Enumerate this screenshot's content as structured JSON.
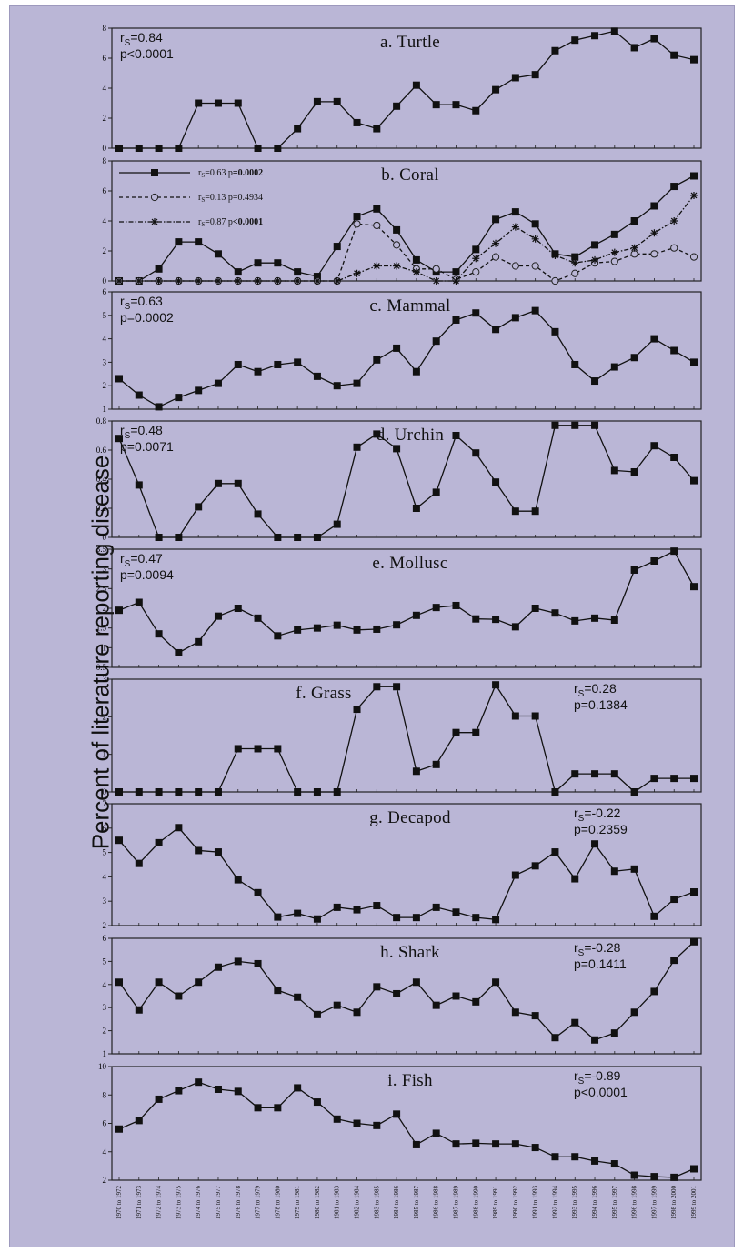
{
  "ylabel": "Percent of literature reporting disease",
  "x_categories": [
    "1970 to 1972",
    "1971 to 1973",
    "1972 to 1974",
    "1973 to 1975",
    "1974 to 1976",
    "1975 to 1977",
    "1976 to 1978",
    "1977 to 1979",
    "1978 to 1980",
    "1979 to 1981",
    "1980 to 1982",
    "1981 to 1983",
    "1982 to 1984",
    "1983 to 1985",
    "1984 to 1986",
    "1985 to 1987",
    "1986 to 1988",
    "1987 to 1989",
    "1988 to 1990",
    "1989 to 1991",
    "1990 to 1992",
    "1991 to 1993",
    "1992 to 1994",
    "1993 to 1995",
    "1994 to 1996",
    "1995 to 1997",
    "1996 to 1998",
    "1997 to 1999",
    "1998 to 2000",
    "1999 to 2001"
  ],
  "chart_data": [
    {
      "type": "line",
      "title": "a. Turtle",
      "stat": {
        "r": "0.84",
        "p": "p<0.0001"
      },
      "stat_position": "top-left",
      "ylim": [
        0,
        8
      ],
      "yticks": [
        0,
        2,
        4,
        6,
        8
      ],
      "series": [
        {
          "marker": "square",
          "line": "solid",
          "values": [
            0,
            0,
            0,
            0,
            3,
            3,
            3,
            0,
            0,
            1.3,
            3.1,
            3.1,
            1.7,
            1.3,
            2.8,
            4.2,
            2.9,
            2.9,
            2.5,
            3.9,
            4.7,
            4.9,
            6.5,
            7.2,
            7.5,
            7.8,
            6.7,
            7.3,
            6.2,
            5.9
          ]
        }
      ]
    },
    {
      "type": "line",
      "title": "b. Coral",
      "ylim": [
        0,
        8
      ],
      "yticks": [
        0,
        2,
        4,
        6,
        8
      ],
      "legend_position": "top-left",
      "series": [
        {
          "marker": "square",
          "line": "solid",
          "legend": {
            "r": "0.63",
            "p": "0.0002",
            "bold_p": true
          },
          "values": [
            0,
            0,
            0.8,
            2.6,
            2.6,
            1.8,
            0.6,
            1.2,
            1.2,
            0.6,
            0.3,
            2.3,
            4.3,
            4.8,
            3.4,
            1.4,
            0.6,
            0.6,
            2.1,
            4.1,
            4.6,
            3.8,
            1.8,
            1.6,
            2.4,
            3.1,
            4,
            5,
            6.3,
            7
          ]
        },
        {
          "marker": "circle",
          "line": "dashed",
          "legend": {
            "r": "0.13",
            "p": "0.4934",
            "bold_p": false
          },
          "values": [
            0,
            0,
            0,
            0,
            0,
            0,
            0,
            0,
            0,
            0,
            0,
            0,
            3.8,
            3.7,
            2.4,
            0.8,
            0.8,
            0.1,
            0.6,
            1.6,
            1,
            1,
            0,
            0.5,
            1.2,
            1.3,
            1.8,
            1.8,
            2.2,
            1.6
          ]
        },
        {
          "marker": "star",
          "line": "dashdot",
          "legend": {
            "r": "0.87",
            "p": "<0.0001",
            "bold_p": true
          },
          "values": [
            0,
            0,
            0,
            0,
            0,
            0,
            0,
            0,
            0,
            0,
            0,
            0,
            0.5,
            1,
            1,
            0.6,
            0,
            0,
            1.5,
            2.5,
            3.6,
            2.8,
            1.7,
            1.2,
            1.4,
            1.9,
            2.2,
            3.2,
            4,
            5.7
          ]
        }
      ]
    },
    {
      "type": "line",
      "title": "c. Mammal",
      "stat": {
        "r": "0.63",
        "p": "p=0.0002"
      },
      "stat_position": "top-left",
      "ylim": [
        1,
        6
      ],
      "yticks": [
        1,
        2,
        3,
        4,
        5,
        6
      ],
      "series": [
        {
          "marker": "square",
          "line": "solid",
          "values": [
            2.3,
            1.6,
            1.1,
            1.5,
            1.8,
            2.1,
            2.9,
            2.6,
            2.9,
            3,
            2.4,
            2,
            2.1,
            3.1,
            3.6,
            2.6,
            3.9,
            4.8,
            5.1,
            4.4,
            4.9,
            5.2,
            4.3,
            2.9,
            2.2,
            2.8,
            3.2,
            4,
            3.5,
            3
          ]
        }
      ]
    },
    {
      "type": "line",
      "title": "d. Urchin",
      "stat": {
        "r": "0.48",
        "p": "p=0.0071"
      },
      "stat_position": "top-left",
      "ylim": [
        0,
        0.8
      ],
      "yticks": [
        0,
        0.2,
        0.4,
        0.6,
        0.8
      ],
      "series": [
        {
          "marker": "square",
          "line": "solid",
          "values": [
            0.68,
            0.36,
            0,
            0,
            0.21,
            0.37,
            0.37,
            0.16,
            0,
            0,
            0,
            0.09,
            0.62,
            0.71,
            0.61,
            0.2,
            0.31,
            0.7,
            0.58,
            0.38,
            0.18,
            0.18,
            0.77,
            0.77,
            0.77,
            0.46,
            0.45,
            0.63,
            0.55,
            0.39
          ]
        }
      ]
    },
    {
      "type": "line",
      "title": "e. Mollusc",
      "stat": {
        "r": "0.47",
        "p": "p=0.0094"
      },
      "stat_position": "top-left",
      "ylim": [
        0.5,
        3.5
      ],
      "yticks": [
        0.5,
        1,
        1.5,
        2,
        2.5,
        3,
        3.5
      ],
      "series": [
        {
          "marker": "square",
          "line": "solid",
          "values": [
            1.95,
            2.15,
            1.35,
            0.87,
            1.15,
            1.8,
            2,
            1.75,
            1.3,
            1.45,
            1.5,
            1.57,
            1.45,
            1.47,
            1.58,
            1.82,
            2.02,
            2.07,
            1.73,
            1.72,
            1.53,
            2,
            1.88,
            1.68,
            1.75,
            1.7,
            2.97,
            3.2,
            3.45,
            2.55
          ]
        }
      ]
    },
    {
      "type": "line",
      "title": "f. Grass",
      "stat": {
        "r": "0.28",
        "p": "p=0.1384"
      },
      "stat_position": "top-right",
      "ylim": [
        0,
        3
      ],
      "yticks": [
        0,
        1,
        2,
        3
      ],
      "series": [
        {
          "marker": "square",
          "line": "solid",
          "values": [
            0,
            0,
            0,
            0,
            0,
            0,
            1.15,
            1.15,
            1.15,
            0,
            0,
            0,
            2.2,
            2.8,
            2.8,
            0.55,
            0.73,
            1.58,
            1.58,
            2.85,
            2.02,
            2.02,
            0,
            0.48,
            0.48,
            0.48,
            0,
            0.36,
            0.36,
            0.36
          ]
        }
      ]
    },
    {
      "type": "line",
      "title": "g. Decapod",
      "stat": {
        "r": "-0.22",
        "p": "p=0.2359"
      },
      "stat_position": "top-right",
      "ylim": [
        2,
        7
      ],
      "yticks": [
        2,
        3,
        4,
        5,
        6,
        7
      ],
      "series": [
        {
          "marker": "square",
          "line": "solid",
          "values": [
            5.5,
            4.55,
            5.4,
            6.02,
            5.08,
            5.02,
            3.88,
            3.35,
            2.35,
            2.5,
            2.27,
            2.75,
            2.65,
            2.82,
            2.33,
            2.33,
            2.75,
            2.55,
            2.33,
            2.25,
            4.07,
            4.45,
            5.02,
            3.92,
            5.35,
            4.23,
            4.32,
            2.38,
            3.08,
            3.38
          ]
        }
      ]
    },
    {
      "type": "line",
      "title": "h. Shark",
      "stat": {
        "r": "-0.28",
        "p": "p=0.1411"
      },
      "stat_position": "top-right",
      "ylim": [
        1,
        6
      ],
      "yticks": [
        1,
        2,
        3,
        4,
        5,
        6
      ],
      "series": [
        {
          "marker": "square",
          "line": "solid",
          "values": [
            4.1,
            2.9,
            4.1,
            3.5,
            4.1,
            4.75,
            5,
            4.9,
            3.75,
            3.45,
            2.7,
            3.1,
            2.8,
            3.9,
            3.6,
            4.1,
            3.1,
            3.5,
            3.25,
            4.1,
            2.8,
            2.65,
            1.7,
            2.35,
            1.6,
            1.9,
            2.8,
            3.7,
            5.05,
            5.85
          ]
        }
      ]
    },
    {
      "type": "line",
      "title": "i. Fish",
      "stat": {
        "r": "-0.89",
        "p": "p<0.0001"
      },
      "stat_position": "top-right",
      "ylim": [
        2,
        10
      ],
      "yticks": [
        2,
        4,
        6,
        8,
        10
      ],
      "series": [
        {
          "marker": "square",
          "line": "solid",
          "values": [
            5.6,
            6.2,
            7.7,
            8.3,
            8.9,
            8.4,
            8.25,
            7.1,
            7.1,
            8.5,
            7.5,
            6.3,
            6,
            5.85,
            6.65,
            4.5,
            5.3,
            4.55,
            4.6,
            4.55,
            4.55,
            4.3,
            3.65,
            3.65,
            3.35,
            3.15,
            2.35,
            2.25,
            2.2,
            2.8
          ]
        }
      ]
    }
  ]
}
